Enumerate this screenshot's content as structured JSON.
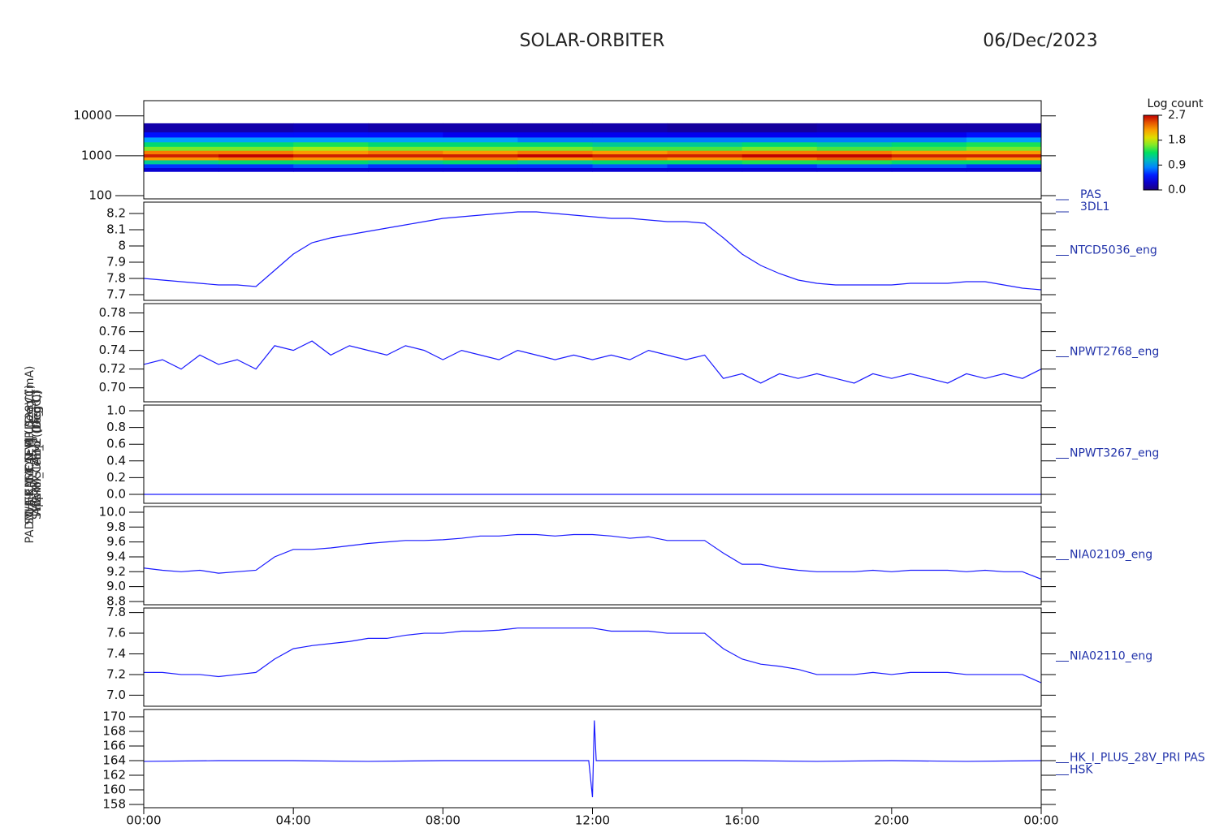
{
  "chart_data": [
    {
      "type": "heatmap",
      "title": "SOLAR-ORBITER",
      "subtitle": "06/Dec/2023",
      "labels": [
        "PAS",
        "3DL1"
      ],
      "ylabel": "E (eV)",
      "ylog": true,
      "colormap": "rainbow",
      "xlim": [
        0,
        24
      ],
      "ylim": [
        83,
        24000
      ],
      "yticks": [
        100,
        1000,
        10000
      ],
      "x_bins": [
        0,
        2,
        4,
        6,
        8,
        10,
        12,
        14,
        16,
        18,
        20,
        22,
        24
      ],
      "y_bins": [
        400,
        500,
        620,
        780,
        920,
        1100,
        1350,
        1700,
        2200,
        2900,
        3900,
        6500
      ],
      "z": [
        [
          0.3,
          0.6,
          1.2,
          2.2,
          2.6,
          2.3,
          1.6,
          1.3,
          0.9,
          0.5,
          0.15
        ],
        [
          0.3,
          0.6,
          1.3,
          2.3,
          2.7,
          2.3,
          1.6,
          1.3,
          0.9,
          0.5,
          0.15
        ],
        [
          0.3,
          0.7,
          1.3,
          2.2,
          2.6,
          2.2,
          1.7,
          1.4,
          0.9,
          0.5,
          0.2
        ],
        [
          0.3,
          0.6,
          1.2,
          2.2,
          2.6,
          2.3,
          1.6,
          1.3,
          0.9,
          0.5,
          0.15
        ],
        [
          0.3,
          0.6,
          1.3,
          2.3,
          2.6,
          2.2,
          1.6,
          1.3,
          0.9,
          0.4,
          0.15
        ],
        [
          0.3,
          0.6,
          1.2,
          2.2,
          2.7,
          2.3,
          1.6,
          1.3,
          0.8,
          0.4,
          0.15
        ],
        [
          0.3,
          0.7,
          1.3,
          2.3,
          2.6,
          2.2,
          1.5,
          1.2,
          0.8,
          0.4,
          0.15
        ],
        [
          0.3,
          0.6,
          1.3,
          2.2,
          2.6,
          2.3,
          1.5,
          1.2,
          0.8,
          0.4,
          0.1
        ],
        [
          0.3,
          0.6,
          1.4,
          2.3,
          2.7,
          2.3,
          1.6,
          1.3,
          0.8,
          0.4,
          0.1
        ],
        [
          0.3,
          0.7,
          1.4,
          2.4,
          2.7,
          2.3,
          1.5,
          1.2,
          0.8,
          0.4,
          0.15
        ],
        [
          0.3,
          0.7,
          1.3,
          2.3,
          2.6,
          2.2,
          1.5,
          1.3,
          0.8,
          0.4,
          0.15
        ],
        [
          0.3,
          0.6,
          1.3,
          2.2,
          2.6,
          2.2,
          1.6,
          1.4,
          0.9,
          0.5,
          0.15
        ]
      ],
      "colorbar_label": "Log count",
      "clim": [
        0,
        2.7
      ],
      "cticks": [
        {
          "value": 0,
          "label": "0.0"
        },
        0.9,
        1.8,
        2.7
      ]
    },
    {
      "type": "line",
      "labels": [
        "NTCD5036_eng"
      ],
      "ylabel": "Approx Temp (Deg C)",
      "xlim": [
        0,
        24
      ],
      "ylim": [
        7.665,
        8.27
      ],
      "yticks": [
        7.7,
        7.8,
        7.9,
        8.0,
        8.1,
        8.2
      ],
      "x": [
        0,
        0.5,
        1,
        1.5,
        2,
        2.5,
        3,
        3.5,
        4,
        4.5,
        5,
        5.5,
        6,
        6.5,
        7,
        7.5,
        8,
        8.5,
        9,
        9.5,
        10,
        10.5,
        11,
        11.5,
        12,
        12.5,
        13,
        13.5,
        14,
        14.5,
        15,
        15.5,
        16,
        16.5,
        17,
        17.5,
        18,
        18.5,
        19,
        19.5,
        20,
        20.5,
        21,
        21.5,
        22,
        22.5,
        23,
        23.5,
        24
      ],
      "series": [
        {
          "color": "#1a1aff",
          "values": [
            7.8,
            7.79,
            7.78,
            7.77,
            7.76,
            7.76,
            7.75,
            7.85,
            7.95,
            8.02,
            8.05,
            8.07,
            8.09,
            8.11,
            8.13,
            8.15,
            8.17,
            8.18,
            8.19,
            8.2,
            8.21,
            8.21,
            8.2,
            8.19,
            8.18,
            8.17,
            8.17,
            8.16,
            8.15,
            8.15,
            8.14,
            8.05,
            7.95,
            7.88,
            7.83,
            7.79,
            7.77,
            7.76,
            7.76,
            7.76,
            7.76,
            7.77,
            7.77,
            7.77,
            7.78,
            7.78,
            7.76,
            7.74,
            7.73
          ]
        }
      ]
    },
    {
      "type": "line",
      "labels": [
        "NPWT2768_eng"
      ],
      "ylabel": "SWA-EAS1 TEMP (Deg C)",
      "xlim": [
        0,
        24
      ],
      "ylim": [
        0.685,
        0.79
      ],
      "yticks": [
        {
          "value": 0.7,
          "label": "0.70"
        },
        0.72,
        0.74,
        0.76,
        0.78
      ],
      "x": [
        0,
        0.5,
        1,
        1.5,
        2,
        2.5,
        3,
        3.5,
        4,
        4.5,
        5,
        5.5,
        6,
        6.5,
        7,
        7.5,
        8,
        8.5,
        9,
        9.5,
        10,
        10.5,
        11,
        11.5,
        12,
        12.5,
        13,
        13.5,
        14,
        14.5,
        15,
        15.5,
        16,
        16.5,
        17,
        17.5,
        18,
        18.5,
        19,
        19.5,
        20,
        20.5,
        21,
        21.5,
        22,
        22.5,
        23,
        23.5,
        24
      ],
      "series": [
        {
          "color": "#1a1aff",
          "values": [
            0.725,
            0.73,
            0.72,
            0.735,
            0.725,
            0.73,
            0.72,
            0.745,
            0.74,
            0.75,
            0.735,
            0.745,
            0.74,
            0.735,
            0.745,
            0.74,
            0.73,
            0.74,
            0.735,
            0.73,
            0.74,
            0.735,
            0.73,
            0.735,
            0.73,
            0.735,
            0.73,
            0.74,
            0.735,
            0.73,
            0.735,
            0.71,
            0.715,
            0.705,
            0.715,
            0.71,
            0.715,
            0.71,
            0.705,
            0.715,
            0.71,
            0.715,
            0.71,
            0.705,
            0.715,
            0.71,
            0.715,
            0.71,
            0.72
          ]
        }
      ]
    },
    {
      "type": "line",
      "labels": [
        "NPWT3267_eng"
      ],
      "ylabel": "SWA-HIS TEMP (Deg C)",
      "xlim": [
        0,
        24
      ],
      "ylim": [
        -0.107,
        1.068
      ],
      "yticks": [
        {
          "value": 0,
          "label": "0.0"
        },
        0.2,
        0.4,
        0.6,
        0.8,
        {
          "value": 1,
          "label": "1.0"
        }
      ],
      "x": [
        0,
        0.5,
        1,
        1.5,
        2,
        2.5,
        3,
        3.5,
        4,
        4.5,
        5,
        5.5,
        6,
        6.5,
        7,
        7.5,
        8,
        8.5,
        9,
        9.5,
        10,
        10.5,
        11,
        11.5,
        12,
        12.5,
        13,
        13.5,
        14,
        14.5,
        15,
        15.5,
        16,
        16.5,
        17,
        17.5,
        18,
        18.5,
        19,
        19.5,
        20,
        20.5,
        21,
        21.5,
        22,
        22.5,
        23,
        23.5,
        24
      ],
      "series": [
        {
          "color": "#1a1aff",
          "values": [
            0,
            0,
            0,
            0,
            0,
            0,
            0,
            0,
            0,
            0,
            0,
            0,
            0,
            0,
            0,
            0,
            0,
            0,
            0,
            0,
            0,
            0,
            0,
            0,
            0,
            0,
            0,
            0,
            0,
            0,
            0,
            0,
            0,
            0,
            0,
            0,
            0,
            0,
            0,
            0,
            0,
            0,
            0,
            0,
            0,
            0,
            0,
            0,
            0
          ]
        }
      ]
    },
    {
      "type": "line",
      "labels": [
        "NIA02109_eng"
      ],
      "ylabel": "THERM_CAL_1 (Deg C)",
      "xlim": [
        0,
        24
      ],
      "ylim": [
        8.756,
        10.076
      ],
      "yticks": [
        8.8,
        {
          "value": 9.0,
          "label": "9.0"
        },
        9.2,
        9.4,
        9.6,
        9.8,
        {
          "value": 10.0,
          "label": "10.0"
        }
      ],
      "x": [
        0,
        0.5,
        1,
        1.5,
        2,
        2.5,
        3,
        3.5,
        4,
        4.5,
        5,
        5.5,
        6,
        6.5,
        7,
        7.5,
        8,
        8.5,
        9,
        9.5,
        10,
        10.5,
        11,
        11.5,
        12,
        12.5,
        13,
        13.5,
        14,
        14.5,
        15,
        15.5,
        16,
        16.5,
        17,
        17.5,
        18,
        18.5,
        19,
        19.5,
        20,
        20.5,
        21,
        21.5,
        22,
        22.5,
        23,
        23.5,
        24
      ],
      "series": [
        {
          "color": "#1a1aff",
          "values": [
            9.25,
            9.22,
            9.2,
            9.22,
            9.18,
            9.2,
            9.22,
            9.4,
            9.5,
            9.5,
            9.52,
            9.55,
            9.58,
            9.6,
            9.62,
            9.62,
            9.63,
            9.65,
            9.68,
            9.68,
            9.7,
            9.7,
            9.68,
            9.7,
            9.7,
            9.68,
            9.65,
            9.67,
            9.62,
            9.62,
            9.62,
            9.45,
            9.3,
            9.3,
            9.25,
            9.22,
            9.2,
            9.2,
            9.2,
            9.22,
            9.2,
            9.22,
            9.22,
            9.22,
            9.2,
            9.22,
            9.2,
            9.2,
            9.1
          ]
        }
      ]
    },
    {
      "type": "line",
      "labels": [
        "NIA02110_eng"
      ],
      "ylabel": "THERM_CAL_2 (Deg C)",
      "xlim": [
        0,
        24
      ],
      "ylim": [
        6.893,
        7.844
      ],
      "yticks": [
        {
          "value": 7.0,
          "label": "7.0"
        },
        7.2,
        7.4,
        7.6,
        7.8
      ],
      "x": [
        0,
        0.5,
        1,
        1.5,
        2,
        2.5,
        3,
        3.5,
        4,
        4.5,
        5,
        5.5,
        6,
        6.5,
        7,
        7.5,
        8,
        8.5,
        9,
        9.5,
        10,
        10.5,
        11,
        11.5,
        12,
        12.5,
        13,
        13.5,
        14,
        14.5,
        15,
        15.5,
        16,
        16.5,
        17,
        17.5,
        18,
        18.5,
        19,
        19.5,
        20,
        20.5,
        21,
        21.5,
        22,
        22.5,
        23,
        23.5,
        24
      ],
      "series": [
        {
          "color": "#1a1aff",
          "values": [
            7.22,
            7.22,
            7.2,
            7.2,
            7.18,
            7.2,
            7.22,
            7.35,
            7.45,
            7.48,
            7.5,
            7.52,
            7.55,
            7.55,
            7.58,
            7.6,
            7.6,
            7.62,
            7.62,
            7.63,
            7.65,
            7.65,
            7.65,
            7.65,
            7.65,
            7.62,
            7.62,
            7.62,
            7.6,
            7.6,
            7.6,
            7.45,
            7.35,
            7.3,
            7.28,
            7.25,
            7.2,
            7.2,
            7.2,
            7.22,
            7.2,
            7.22,
            7.22,
            7.22,
            7.2,
            7.2,
            7.2,
            7.2,
            7.12
          ]
        }
      ]
    },
    {
      "type": "line",
      "labels": [
        "HK_I_PLUS_28V_PRI PAS",
        "HSK"
      ],
      "ylabel": "PADM_HK_IMON_PLUS28V (mA)",
      "xlim": [
        0,
        24
      ],
      "ylim": [
        157.56,
        171
      ],
      "yticks": [
        158,
        160,
        162,
        164,
        166,
        168,
        170
      ],
      "xticks": [
        {
          "value": 0,
          "label": "00:00"
        },
        {
          "value": 4,
          "label": "04:00"
        },
        {
          "value": 8,
          "label": "08:00"
        },
        {
          "value": 12,
          "label": "12:00"
        },
        {
          "value": 16,
          "label": "16:00"
        },
        {
          "value": 20,
          "label": "20:00"
        },
        {
          "value": 24,
          "label": "00:00"
        }
      ],
      "x": [
        0,
        2,
        4,
        6,
        8,
        10,
        11.9,
        12,
        12.05,
        12.1,
        14,
        16,
        18,
        20,
        22,
        24
      ],
      "series": [
        {
          "color": "#1a1aff",
          "values": [
            163.9,
            164,
            164,
            163.9,
            164,
            164,
            164,
            159,
            169.5,
            164,
            164,
            164,
            163.9,
            164,
            163.9,
            164
          ]
        }
      ]
    }
  ]
}
